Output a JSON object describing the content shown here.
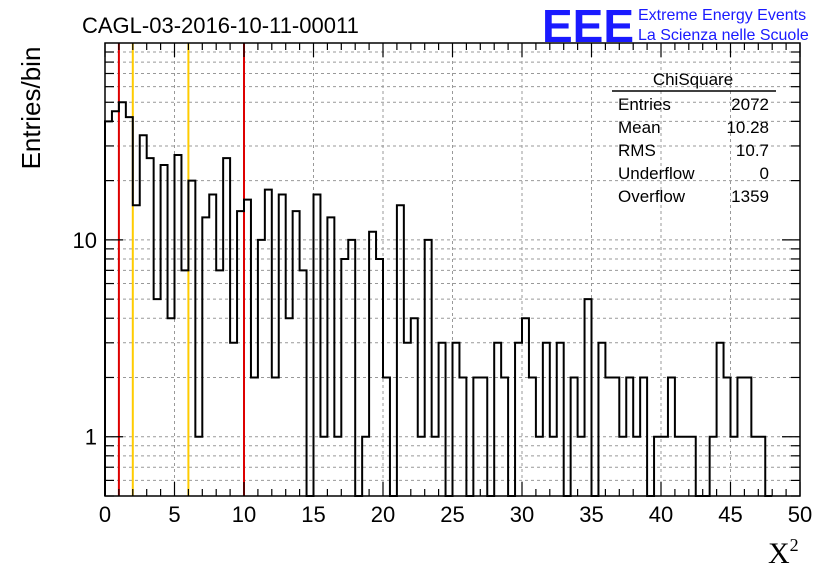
{
  "chart_data": {
    "type": "histogram",
    "title": "CAGL-03-2016-10-11-00011",
    "xlabel": "X",
    "xlabel_superscript": "2",
    "ylabel": "Entries/bin",
    "xlim": [
      0,
      50
    ],
    "ylim": [
      0.5,
      100
    ],
    "log_y": true,
    "grid": true,
    "bin_width": 0.5,
    "x_ticks": [
      0,
      5,
      10,
      15,
      20,
      25,
      30,
      35,
      40,
      45,
      50
    ],
    "y_ticks": [
      {
        "value": 1,
        "label": "1"
      },
      {
        "value": 10,
        "label": "10"
      }
    ],
    "bins": [
      {
        "x": 0.0,
        "count": 40
      },
      {
        "x": 0.5,
        "count": 45
      },
      {
        "x": 1.0,
        "count": 50
      },
      {
        "x": 1.5,
        "count": 42
      },
      {
        "x": 2.0,
        "count": 15
      },
      {
        "x": 2.5,
        "count": 34
      },
      {
        "x": 3.0,
        "count": 26
      },
      {
        "x": 3.5,
        "count": 5
      },
      {
        "x": 4.0,
        "count": 24
      },
      {
        "x": 4.5,
        "count": 4
      },
      {
        "x": 5.0,
        "count": 27
      },
      {
        "x": 5.5,
        "count": 7
      },
      {
        "x": 6.0,
        "count": 20
      },
      {
        "x": 6.5,
        "count": 1
      },
      {
        "x": 7.0,
        "count": 13
      },
      {
        "x": 7.5,
        "count": 17
      },
      {
        "x": 8.0,
        "count": 7
      },
      {
        "x": 8.5,
        "count": 26
      },
      {
        "x": 9.0,
        "count": 3
      },
      {
        "x": 9.5,
        "count": 14
      },
      {
        "x": 10.0,
        "count": 16
      },
      {
        "x": 10.5,
        "count": 2
      },
      {
        "x": 11.0,
        "count": 10
      },
      {
        "x": 11.5,
        "count": 18
      },
      {
        "x": 12.0,
        "count": 2
      },
      {
        "x": 12.5,
        "count": 17
      },
      {
        "x": 13.0,
        "count": 4
      },
      {
        "x": 13.5,
        "count": 14
      },
      {
        "x": 14.0,
        "count": 7
      },
      {
        "x": 14.5,
        "count": 0
      },
      {
        "x": 15.0,
        "count": 17
      },
      {
        "x": 15.5,
        "count": 1
      },
      {
        "x": 16.0,
        "count": 13
      },
      {
        "x": 16.5,
        "count": 1
      },
      {
        "x": 17.0,
        "count": 8
      },
      {
        "x": 17.5,
        "count": 10
      },
      {
        "x": 18.0,
        "count": 0
      },
      {
        "x": 18.5,
        "count": 1
      },
      {
        "x": 19.0,
        "count": 11
      },
      {
        "x": 19.5,
        "count": 8
      },
      {
        "x": 20.0,
        "count": 2
      },
      {
        "x": 20.5,
        "count": 0
      },
      {
        "x": 21.0,
        "count": 15
      },
      {
        "x": 21.5,
        "count": 3
      },
      {
        "x": 22.0,
        "count": 4
      },
      {
        "x": 22.5,
        "count": 1
      },
      {
        "x": 23.0,
        "count": 10
      },
      {
        "x": 23.5,
        "count": 1
      },
      {
        "x": 24.0,
        "count": 3
      },
      {
        "x": 24.5,
        "count": 0
      },
      {
        "x": 25.0,
        "count": 3
      },
      {
        "x": 25.5,
        "count": 2
      },
      {
        "x": 26.0,
        "count": 0
      },
      {
        "x": 26.5,
        "count": 2
      },
      {
        "x": 27.0,
        "count": 2
      },
      {
        "x": 27.5,
        "count": 0
      },
      {
        "x": 28.0,
        "count": 3
      },
      {
        "x": 28.5,
        "count": 2
      },
      {
        "x": 29.0,
        "count": 0
      },
      {
        "x": 29.5,
        "count": 3
      },
      {
        "x": 30.0,
        "count": 4
      },
      {
        "x": 30.5,
        "count": 2
      },
      {
        "x": 31.0,
        "count": 1
      },
      {
        "x": 31.5,
        "count": 3
      },
      {
        "x": 32.0,
        "count": 1
      },
      {
        "x": 32.5,
        "count": 3
      },
      {
        "x": 33.0,
        "count": 0
      },
      {
        "x": 33.5,
        "count": 2
      },
      {
        "x": 34.0,
        "count": 1
      },
      {
        "x": 34.5,
        "count": 5
      },
      {
        "x": 35.0,
        "count": 0
      },
      {
        "x": 35.5,
        "count": 3
      },
      {
        "x": 36.0,
        "count": 2
      },
      {
        "x": 36.5,
        "count": 2
      },
      {
        "x": 37.0,
        "count": 1
      },
      {
        "x": 37.5,
        "count": 2
      },
      {
        "x": 38.0,
        "count": 1
      },
      {
        "x": 38.5,
        "count": 2
      },
      {
        "x": 39.0,
        "count": 0
      },
      {
        "x": 39.5,
        "count": 1
      },
      {
        "x": 40.0,
        "count": 1
      },
      {
        "x": 40.5,
        "count": 2
      },
      {
        "x": 41.0,
        "count": 1
      },
      {
        "x": 41.5,
        "count": 1
      },
      {
        "x": 42.0,
        "count": 1
      },
      {
        "x": 42.5,
        "count": 0
      },
      {
        "x": 43.0,
        "count": 0
      },
      {
        "x": 43.5,
        "count": 1
      },
      {
        "x": 44.0,
        "count": 3
      },
      {
        "x": 44.5,
        "count": 2
      },
      {
        "x": 45.0,
        "count": 1
      },
      {
        "x": 45.5,
        "count": 2
      },
      {
        "x": 46.0,
        "count": 2
      },
      {
        "x": 46.5,
        "count": 1
      },
      {
        "x": 47.0,
        "count": 1
      },
      {
        "x": 47.5,
        "count": 0
      }
    ],
    "reference_lines": [
      {
        "x": 1,
        "color": "#dd0000",
        "style": "solid"
      },
      {
        "x": 2,
        "color": "#ffcc00",
        "style": "solid"
      },
      {
        "x": 6,
        "color": "#ffcc00",
        "style": "solid"
      },
      {
        "x": 10,
        "color": "#dd0000",
        "style": "solid"
      }
    ],
    "stats_box": {
      "title": "ChiSquare",
      "rows": [
        {
          "label": "Entries",
          "value": "2072"
        },
        {
          "label": "Mean",
          "value": "10.28"
        },
        {
          "label": "RMS",
          "value": "10.7"
        },
        {
          "label": "Underflow",
          "value": "0"
        },
        {
          "label": "Overflow",
          "value": "1359"
        }
      ]
    }
  },
  "branding": {
    "logo": "EEE",
    "line1": "Extreme Energy Events",
    "line2": "La Scienza nelle Scuole"
  },
  "colors": {
    "histogram": "#000000",
    "grid": "#999999",
    "brand": "#1a1aff"
  }
}
